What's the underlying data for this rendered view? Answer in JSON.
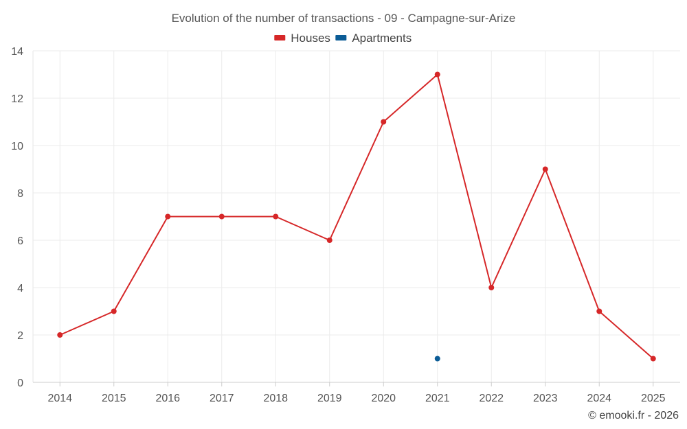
{
  "chart_data": {
    "type": "line",
    "title": "Evolution of the number of transactions - 09 - Campagne-sur-Arize",
    "categories": [
      "2014",
      "2015",
      "2016",
      "2017",
      "2018",
      "2019",
      "2020",
      "2021",
      "2022",
      "2023",
      "2024",
      "2025"
    ],
    "series": [
      {
        "name": "Houses",
        "color": "#d62728",
        "values": [
          2,
          3,
          7,
          7,
          7,
          6,
          11,
          13,
          4,
          9,
          3,
          1
        ]
      },
      {
        "name": "Apartments",
        "color": "#0b5c96",
        "values": [
          null,
          null,
          null,
          null,
          null,
          null,
          null,
          1,
          null,
          null,
          null,
          null
        ]
      }
    ],
    "ylim": [
      0,
      14
    ],
    "yticks": [
      0,
      2,
      4,
      6,
      8,
      10,
      12,
      14
    ],
    "grid": true,
    "legend_position": "top-center",
    "credit": "© emooki.fr - 2026"
  }
}
